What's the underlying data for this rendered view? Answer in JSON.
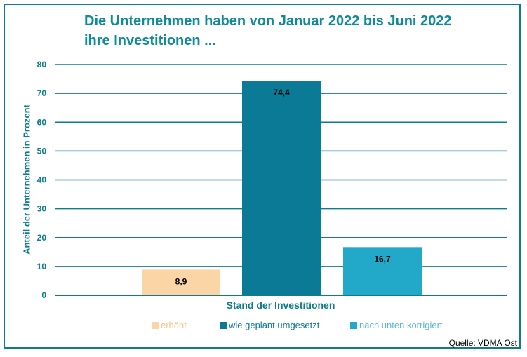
{
  "chart_data": {
    "type": "bar",
    "title": "Die Unternehmen haben von Januar 2022 bis Juni 2022\nihre Investitionen ...",
    "xlabel": "Stand der Investitionen",
    "ylabel": "Anteil der Unternehmen in Prozent",
    "ylim": [
      0,
      80
    ],
    "yticks": [
      "0",
      "10",
      "20",
      "30",
      "40",
      "50",
      "60",
      "70",
      "80"
    ],
    "grid": true,
    "legend_position": "bottom",
    "categories": [
      "erhöht",
      "wie geplant umgesetzt",
      "nach unten korrigiert"
    ],
    "values": [
      8.9,
      74.4,
      16.7
    ],
    "value_labels": [
      "8,9",
      "74,4",
      "16,7"
    ],
    "colors": [
      "#fcd5a6",
      "#0b7a96",
      "#22a9c9"
    ],
    "legend_text_colors": [
      "#f5c48c",
      "#0b7a96",
      "#5ab8cf"
    ],
    "source": "Quelle: VDMA Ost"
  }
}
